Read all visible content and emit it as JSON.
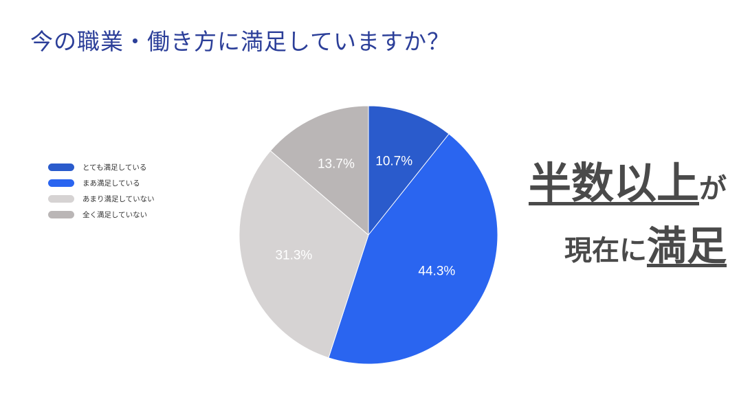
{
  "title": "今の職業・働き方に満足していますか？",
  "headline": {
    "emphasis1": "半数以上",
    "particle1": "が",
    "plain": "現在に",
    "emphasis2": "満足"
  },
  "chart_data": {
    "type": "pie",
    "categories": [
      "とても満足している",
      "まあ満足している",
      "あまり満足していない",
      "全く満足していない"
    ],
    "values": [
      10.7,
      44.3,
      31.3,
      13.7
    ],
    "labels": [
      "10.7%",
      "44.3%",
      "31.3%",
      "13.7%"
    ],
    "colors": [
      "#2a5bcc",
      "#2a65f0",
      "#d6d3d3",
      "#bab6b6"
    ],
    "legend_position": "left",
    "start_angle": "12 o'clock",
    "direction": "clockwise"
  }
}
